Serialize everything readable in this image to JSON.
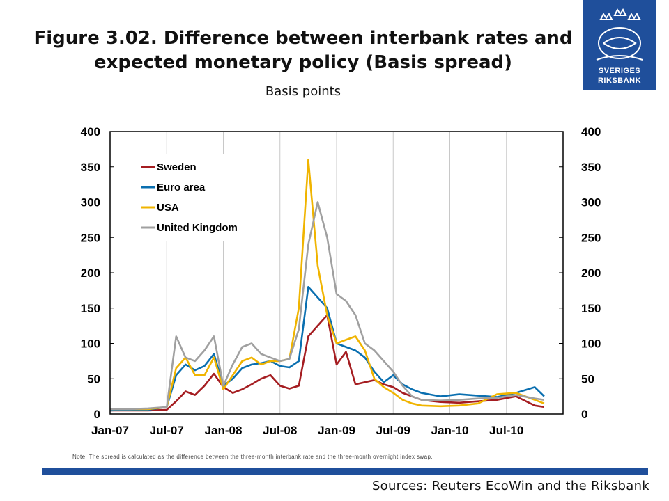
{
  "title": "Figure 3.02. Difference between interbank rates and expected monetary policy (Basis spread)",
  "subtitle": "Basis points",
  "logo": {
    "line1": "SVERIGES",
    "line2": "RIKSBANK",
    "icon": "riksbank-crest-icon"
  },
  "note": "Note. The spread is calculated as the difference between the three-month interbank rate and the three-month overnight index swap.",
  "source": "Sources: Reuters EcoWin and the Riksbank",
  "colors": {
    "brand": "#1f4f9b",
    "Sweden": "#a51d21",
    "Euro area": "#0a6fb0",
    "USA": "#f0b400",
    "United Kingdom": "#a0a0a0"
  },
  "chart_data": {
    "type": "line",
    "ylim": [
      0,
      400
    ],
    "y_ticks": [
      "0",
      "50",
      "100",
      "150",
      "200",
      "250",
      "300",
      "350",
      "400"
    ],
    "x_ticks": [
      "Jan-07",
      "Jul-07",
      "Jan-08",
      "Jul-08",
      "Jan-09",
      "Jul-09",
      "Jan-10",
      "Jul-10"
    ],
    "x_tick_dates": [
      "2007-01",
      "2007-07",
      "2008-01",
      "2008-07",
      "2009-01",
      "2009-07",
      "2010-01",
      "2010-07"
    ],
    "xlim": [
      "2007-01",
      "2011-01"
    ],
    "legend_position": "top-left",
    "grid": "vertical",
    "series": [
      {
        "name": "Sweden",
        "color": "#a51d21",
        "points": [
          [
            "2007-01",
            5
          ],
          [
            "2007-03",
            5
          ],
          [
            "2007-05",
            5
          ],
          [
            "2007-07",
            6
          ],
          [
            "2007-08",
            18
          ],
          [
            "2007-09",
            32
          ],
          [
            "2007-10",
            27
          ],
          [
            "2007-11",
            40
          ],
          [
            "2007-12",
            57
          ],
          [
            "2008-01",
            38
          ],
          [
            "2008-02",
            30
          ],
          [
            "2008-03",
            35
          ],
          [
            "2008-04",
            42
          ],
          [
            "2008-05",
            50
          ],
          [
            "2008-06",
            55
          ],
          [
            "2008-07",
            40
          ],
          [
            "2008-08",
            36
          ],
          [
            "2008-09",
            40
          ],
          [
            "2008-10",
            110
          ],
          [
            "2008-11",
            125
          ],
          [
            "2008-12",
            140
          ],
          [
            "2009-01",
            70
          ],
          [
            "2009-02",
            88
          ],
          [
            "2009-03",
            42
          ],
          [
            "2009-04",
            45
          ],
          [
            "2009-05",
            48
          ],
          [
            "2009-06",
            42
          ],
          [
            "2009-07",
            38
          ],
          [
            "2009-08",
            30
          ],
          [
            "2009-09",
            25
          ],
          [
            "2009-10",
            20
          ],
          [
            "2009-12",
            17
          ],
          [
            "2010-02",
            16
          ],
          [
            "2010-04",
            18
          ],
          [
            "2010-06",
            20
          ],
          [
            "2010-08",
            25
          ],
          [
            "2010-10",
            12
          ],
          [
            "2010-11",
            10
          ]
        ]
      },
      {
        "name": "Euro area",
        "color": "#0a6fb0",
        "points": [
          [
            "2007-01",
            5
          ],
          [
            "2007-03",
            6
          ],
          [
            "2007-05",
            6
          ],
          [
            "2007-07",
            10
          ],
          [
            "2007-08",
            55
          ],
          [
            "2007-09",
            70
          ],
          [
            "2007-10",
            62
          ],
          [
            "2007-11",
            68
          ],
          [
            "2007-12",
            85
          ],
          [
            "2008-01",
            40
          ],
          [
            "2008-02",
            50
          ],
          [
            "2008-03",
            65
          ],
          [
            "2008-04",
            70
          ],
          [
            "2008-05",
            72
          ],
          [
            "2008-06",
            75
          ],
          [
            "2008-07",
            68
          ],
          [
            "2008-08",
            66
          ],
          [
            "2008-09",
            75
          ],
          [
            "2008-10",
            180
          ],
          [
            "2008-11",
            165
          ],
          [
            "2008-12",
            150
          ],
          [
            "2009-01",
            100
          ],
          [
            "2009-02",
            95
          ],
          [
            "2009-03",
            90
          ],
          [
            "2009-04",
            80
          ],
          [
            "2009-05",
            60
          ],
          [
            "2009-06",
            45
          ],
          [
            "2009-07",
            55
          ],
          [
            "2009-08",
            42
          ],
          [
            "2009-09",
            35
          ],
          [
            "2009-10",
            30
          ],
          [
            "2009-12",
            25
          ],
          [
            "2010-02",
            28
          ],
          [
            "2010-04",
            26
          ],
          [
            "2010-06",
            24
          ],
          [
            "2010-08",
            30
          ],
          [
            "2010-10",
            38
          ],
          [
            "2010-11",
            25
          ]
        ]
      },
      {
        "name": "USA",
        "color": "#f0b400",
        "points": [
          [
            "2007-01",
            7
          ],
          [
            "2007-03",
            7
          ],
          [
            "2007-05",
            7
          ],
          [
            "2007-07",
            10
          ],
          [
            "2007-08",
            65
          ],
          [
            "2007-09",
            80
          ],
          [
            "2007-10",
            55
          ],
          [
            "2007-11",
            55
          ],
          [
            "2007-12",
            80
          ],
          [
            "2008-01",
            35
          ],
          [
            "2008-02",
            55
          ],
          [
            "2008-03",
            75
          ],
          [
            "2008-04",
            80
          ],
          [
            "2008-05",
            70
          ],
          [
            "2008-06",
            75
          ],
          [
            "2008-07",
            75
          ],
          [
            "2008-08",
            78
          ],
          [
            "2008-09",
            150
          ],
          [
            "2008-10",
            360
          ],
          [
            "2008-11",
            210
          ],
          [
            "2008-12",
            140
          ],
          [
            "2009-01",
            100
          ],
          [
            "2009-02",
            105
          ],
          [
            "2009-03",
            110
          ],
          [
            "2009-04",
            90
          ],
          [
            "2009-05",
            50
          ],
          [
            "2009-06",
            38
          ],
          [
            "2009-07",
            30
          ],
          [
            "2009-08",
            20
          ],
          [
            "2009-09",
            15
          ],
          [
            "2009-10",
            12
          ],
          [
            "2009-12",
            11
          ],
          [
            "2010-02",
            12
          ],
          [
            "2010-04",
            15
          ],
          [
            "2010-06",
            28
          ],
          [
            "2010-08",
            30
          ],
          [
            "2010-10",
            20
          ],
          [
            "2010-11",
            15
          ]
        ]
      },
      {
        "name": "United Kingdom",
        "color": "#a0a0a0",
        "points": [
          [
            "2007-01",
            7
          ],
          [
            "2007-03",
            7
          ],
          [
            "2007-05",
            8
          ],
          [
            "2007-07",
            10
          ],
          [
            "2007-08",
            110
          ],
          [
            "2007-09",
            80
          ],
          [
            "2007-10",
            75
          ],
          [
            "2007-11",
            90
          ],
          [
            "2007-12",
            110
          ],
          [
            "2008-01",
            40
          ],
          [
            "2008-02",
            70
          ],
          [
            "2008-03",
            95
          ],
          [
            "2008-04",
            100
          ],
          [
            "2008-05",
            85
          ],
          [
            "2008-06",
            80
          ],
          [
            "2008-07",
            75
          ],
          [
            "2008-08",
            78
          ],
          [
            "2008-09",
            120
          ],
          [
            "2008-10",
            240
          ],
          [
            "2008-11",
            300
          ],
          [
            "2008-12",
            250
          ],
          [
            "2009-01",
            170
          ],
          [
            "2009-02",
            160
          ],
          [
            "2009-03",
            140
          ],
          [
            "2009-04",
            100
          ],
          [
            "2009-05",
            90
          ],
          [
            "2009-06",
            75
          ],
          [
            "2009-07",
            60
          ],
          [
            "2009-08",
            40
          ],
          [
            "2009-09",
            25
          ],
          [
            "2009-10",
            20
          ],
          [
            "2009-12",
            19
          ],
          [
            "2010-02",
            20
          ],
          [
            "2010-04",
            22
          ],
          [
            "2010-06",
            23
          ],
          [
            "2010-08",
            27
          ],
          [
            "2010-10",
            22
          ],
          [
            "2010-11",
            20
          ]
        ]
      }
    ]
  }
}
